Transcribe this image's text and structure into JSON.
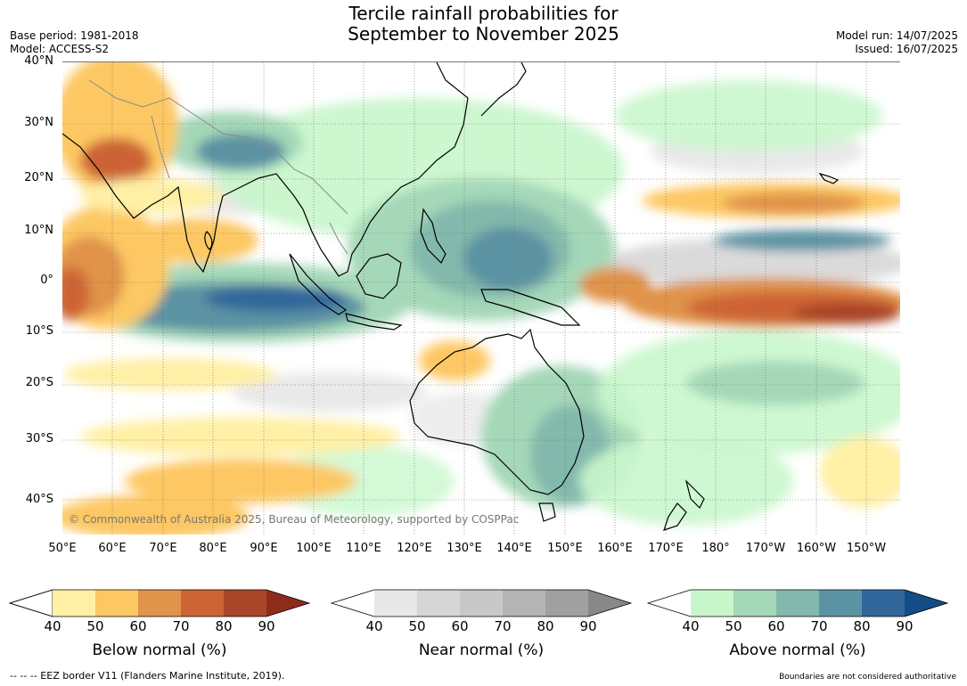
{
  "header": {
    "title_line1": "Tercile rainfall probabilities for",
    "title_line2": "September to November 2025",
    "base_period": "Base period: 1981-2018",
    "model": "Model: ACCESS-S2",
    "model_run": "Model run: 14/07/2025",
    "issued": "Issued: 16/07/2025"
  },
  "map": {
    "lat_labels": [
      "40°N",
      "30°N",
      "20°N",
      "10°N",
      "0°",
      "10°S",
      "20°S",
      "30°S",
      "40°S"
    ],
    "lon_labels": [
      "50°E",
      "60°E",
      "70°E",
      "80°E",
      "90°E",
      "100°E",
      "110°E",
      "120°E",
      "130°E",
      "140°E",
      "150°E",
      "160°E",
      "170°E",
      "180°",
      "170°W",
      "160°W",
      "150°W"
    ],
    "copyright": "© Commonwealth of Australia 2025, Bureau of Meteorology, supported by COSPPac",
    "colors": {
      "below": [
        "#fff0a6",
        "#fdc863",
        "#e0934a",
        "#cd6434",
        "#a94528",
        "#8e2c1c"
      ],
      "near": [
        "#e8e8e8",
        "#d6d6d6",
        "#c8c8c8",
        "#b4b4b4",
        "#a0a0a0",
        "#888888"
      ],
      "above": [
        "#c9f7cc",
        "#a5d8b8",
        "#83b8ac",
        "#5c93a3",
        "#32679b",
        "#124d85"
      ]
    }
  },
  "colorbars": [
    {
      "title": "Below normal (%)",
      "ticks": [
        "40",
        "50",
        "60",
        "70",
        "80",
        "90"
      ]
    },
    {
      "title": "Near normal (%)",
      "ticks": [
        "40",
        "50",
        "60",
        "70",
        "80",
        "90"
      ]
    },
    {
      "title": "Above normal (%)",
      "ticks": [
        "40",
        "50",
        "60",
        "70",
        "80",
        "90"
      ]
    }
  ],
  "footer": {
    "eez": "--  --  -- EEZ border V11 (Flanders Marine Institute, 2019).",
    "disclaimer": "Boundaries are not considered authoritative"
  }
}
